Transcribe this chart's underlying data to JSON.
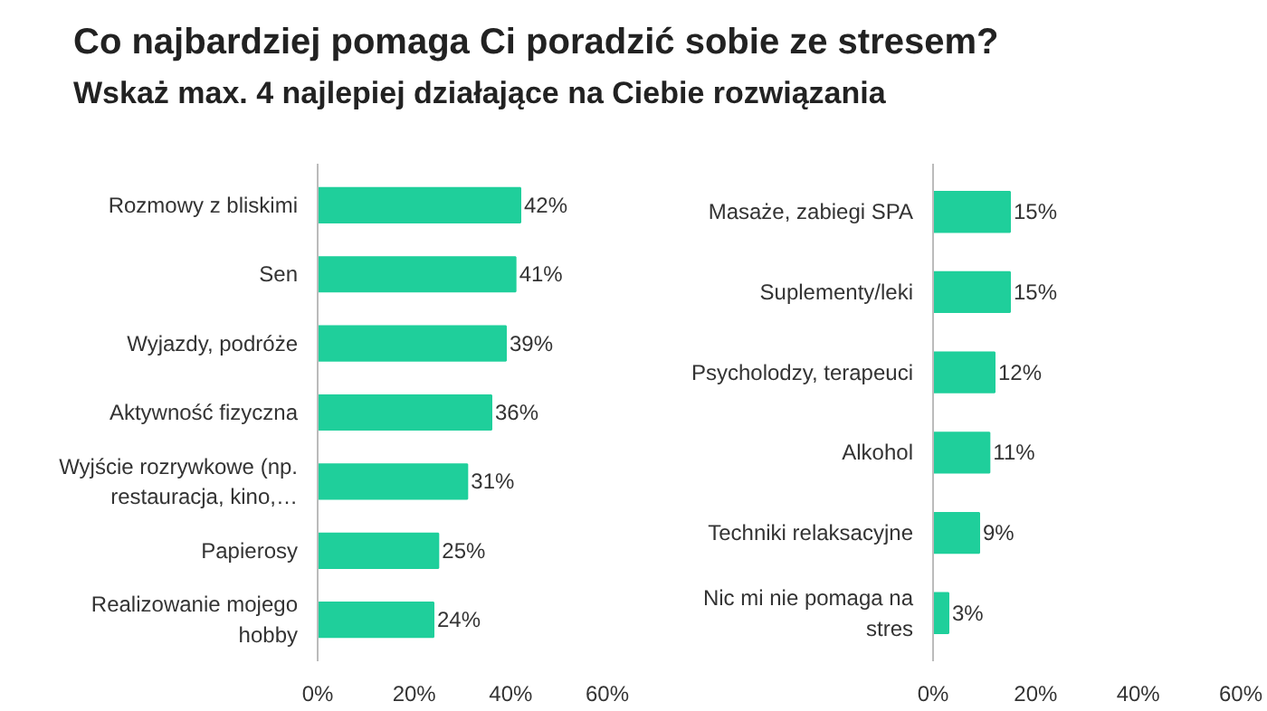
{
  "chart_data": [
    {
      "type": "bar",
      "orientation": "horizontal",
      "title": "Co najbardziej pomaga Ci poradzić sobie ze stresem?",
      "subtitle": "Wskaż max. 4 najlepiej działające na Ciebie rozwiązania",
      "categories": [
        "Rozmowy z bliskimi",
        "Sen",
        "Wyjazdy, podróże",
        "Aktywność fizyczna",
        "Wyjście rozrywkowe (np. restauracja, kino,…",
        "Papierosy",
        "Realizowanie mojego hobby"
      ],
      "values": [
        42,
        41,
        39,
        36,
        31,
        25,
        24
      ],
      "value_labels": [
        "42%",
        "41%",
        "39%",
        "36%",
        "31%",
        "25%",
        "24%"
      ],
      "color": "#1fcf9b",
      "xlim": [
        0,
        60
      ],
      "xticks": [
        {
          "value": 0,
          "label": "0%"
        },
        {
          "value": 20,
          "label": "20%"
        },
        {
          "value": 40,
          "label": "40%"
        },
        {
          "value": 60,
          "label": "60%"
        }
      ],
      "grid": false
    },
    {
      "type": "bar",
      "orientation": "horizontal",
      "categories": [
        "Masaże, zabiegi SPA",
        "Suplementy/leki",
        "Psycholodzy, terapeuci",
        "Alkohol",
        "Techniki relaksacyjne",
        "Nic mi nie pomaga na stres"
      ],
      "values": [
        15,
        15,
        12,
        11,
        9,
        3
      ],
      "value_labels": [
        "15%",
        "15%",
        "12%",
        "11%",
        "9%",
        "3%"
      ],
      "color": "#1fcf9b",
      "xlim": [
        0,
        60
      ],
      "xticks": [
        {
          "value": 0,
          "label": "0%"
        },
        {
          "value": 20,
          "label": "20%"
        },
        {
          "value": 40,
          "label": "40%"
        },
        {
          "value": 60,
          "label": "60%"
        }
      ],
      "grid": false
    }
  ]
}
